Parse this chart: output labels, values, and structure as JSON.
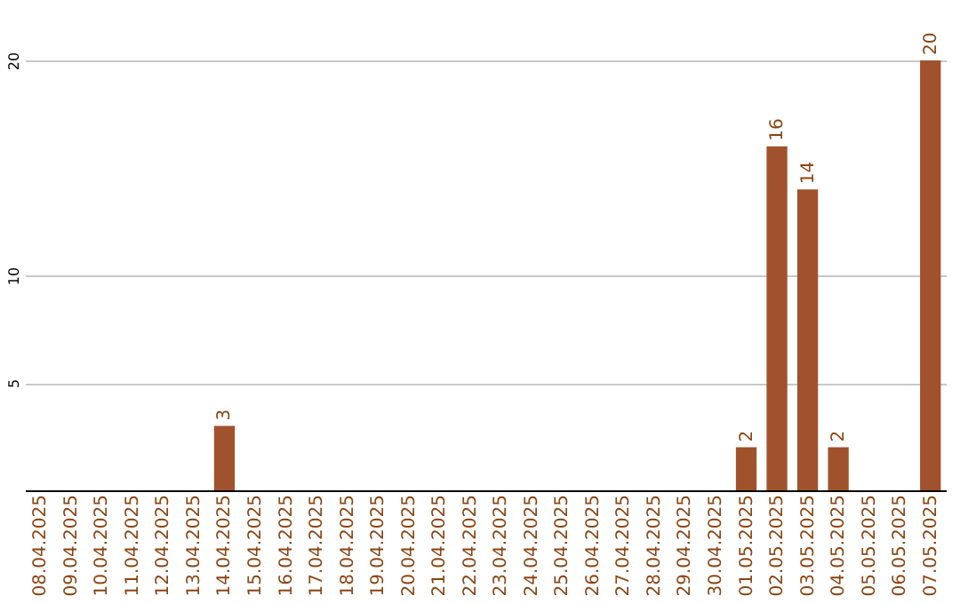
{
  "chart_data": {
    "type": "bar",
    "categories": [
      "08.04.2025",
      "09.04.2025",
      "10.04.2025",
      "11.04.2025",
      "12.04.2025",
      "13.04.2025",
      "14.04.2025",
      "15.04.2025",
      "16.04.2025",
      "17.04.2025",
      "18.04.2025",
      "19.04.2025",
      "20.04.2025",
      "21.04.2025",
      "22.04.2025",
      "23.04.2025",
      "24.04.2025",
      "25.04.2025",
      "26.04.2025",
      "27.04.2025",
      "28.04.2025",
      "29.04.2025",
      "30.04.2025",
      "01.05.2025",
      "02.05.2025",
      "03.05.2025",
      "04.05.2025",
      "05.05.2025",
      "06.05.2025",
      "07.05.2025"
    ],
    "values": [
      0,
      0,
      0,
      0,
      0,
      0,
      3,
      0,
      0,
      0,
      0,
      0,
      0,
      0,
      0,
      0,
      0,
      0,
      0,
      0,
      0,
      0,
      0,
      2,
      16,
      14,
      2,
      0,
      0,
      20
    ],
    "value_labels": [
      null,
      null,
      null,
      null,
      null,
      null,
      "3",
      null,
      null,
      null,
      null,
      null,
      null,
      null,
      null,
      null,
      null,
      null,
      null,
      null,
      null,
      null,
      null,
      "2",
      "16",
      "14",
      "2",
      null,
      null,
      "20"
    ],
    "color": "#a0522d",
    "ylim": [
      0,
      20
    ],
    "yticks": [
      5,
      10,
      20
    ],
    "grid": "y"
  }
}
